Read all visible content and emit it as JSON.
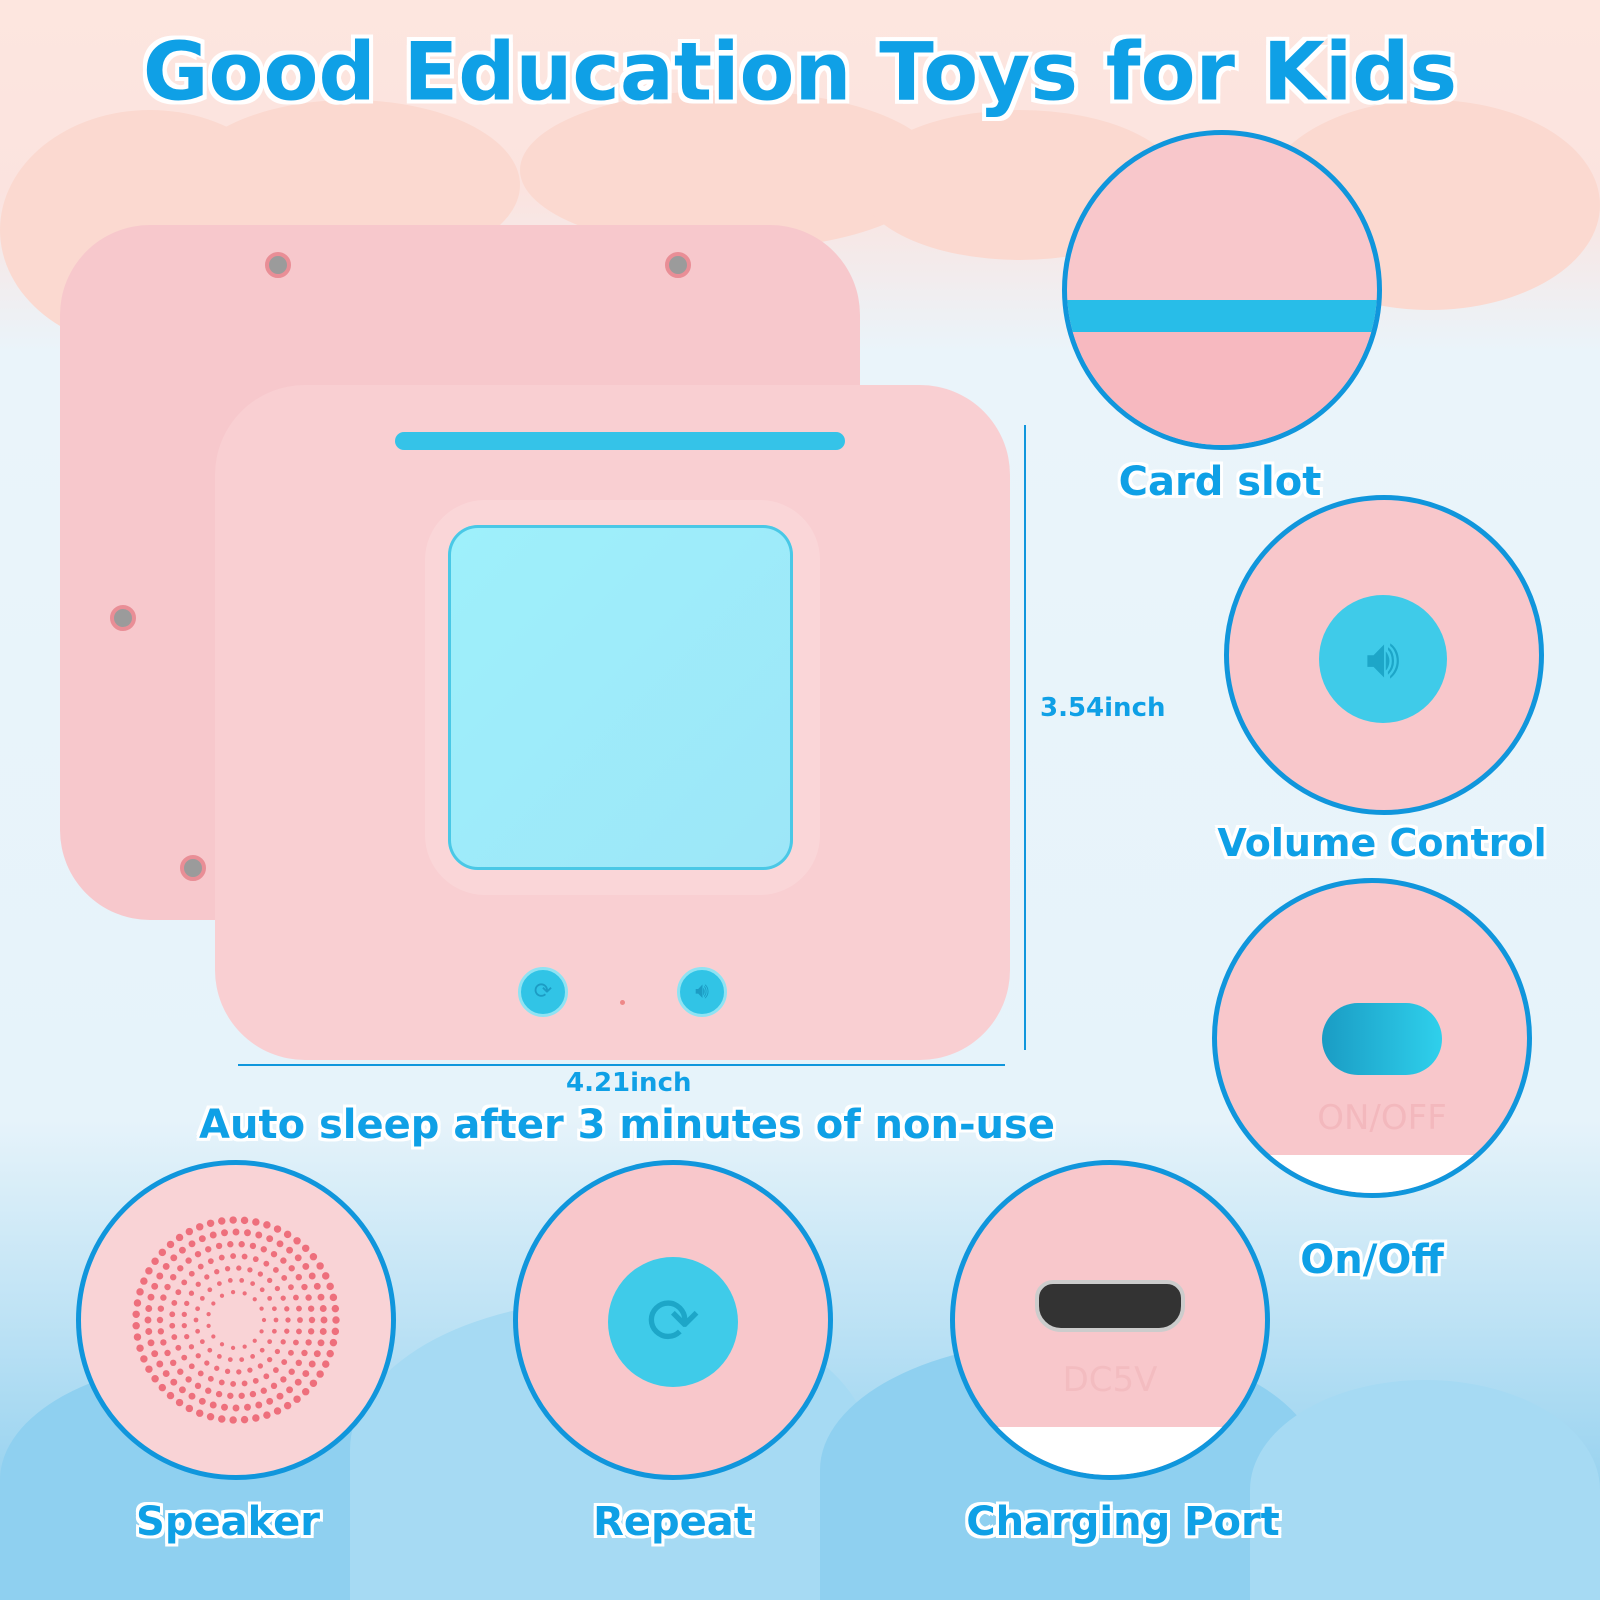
{
  "title": "Good Education Toys for Kids",
  "dimensions": {
    "height": "3.54inch",
    "width": "4.21inch"
  },
  "caption": "Auto sleep after 3 minutes of non-use",
  "features": {
    "card_slot": "Card slot",
    "volume_control": "Volume Control",
    "on_off": "On/Off",
    "speaker": "Speaker",
    "repeat": "Repeat",
    "charging_port": "Charging Port"
  },
  "device_markings": {
    "switch": "ON/OFF",
    "port": "DC5V"
  },
  "colors": {
    "accent": "#0fa0e6",
    "device": "#f9cfd2",
    "screen": "#9eeefa",
    "button": "#31c4e6"
  }
}
